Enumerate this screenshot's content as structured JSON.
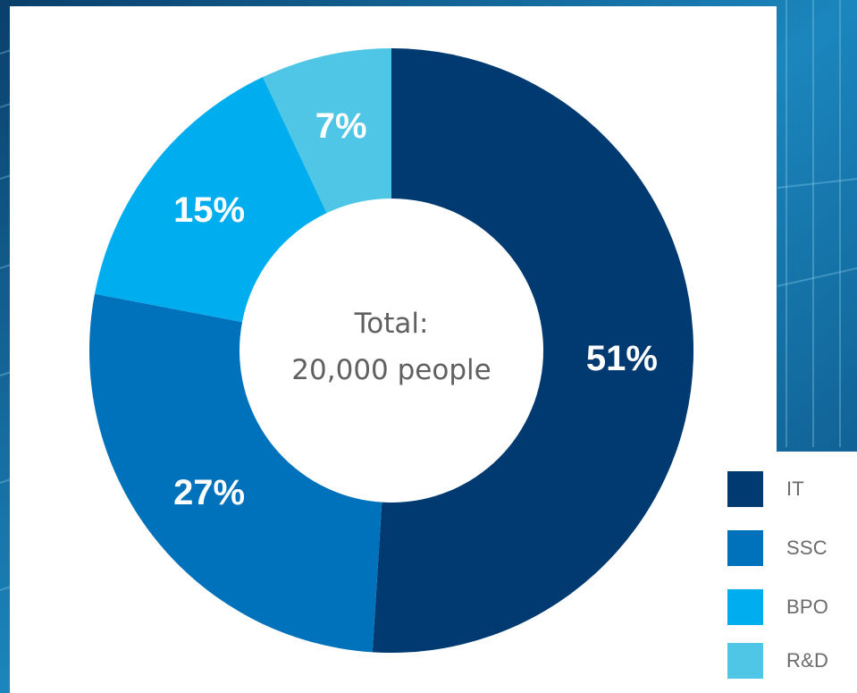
{
  "chart_data": {
    "type": "pie",
    "donut": true,
    "center_text": [
      "Total:",
      "20,000 people"
    ],
    "slices": [
      {
        "label": "IT",
        "value": 51,
        "text": "51%",
        "color": "#003a70"
      },
      {
        "label": "SSC",
        "value": 27,
        "text": "27%",
        "color": "#0072bc"
      },
      {
        "label": "BPO",
        "value": 15,
        "text": "15%",
        "color": "#00adef"
      },
      {
        "label": "R&D",
        "value": 7,
        "text": "7%",
        "color": "#4fc6e6"
      }
    ],
    "legend_position": "bottom-right"
  }
}
